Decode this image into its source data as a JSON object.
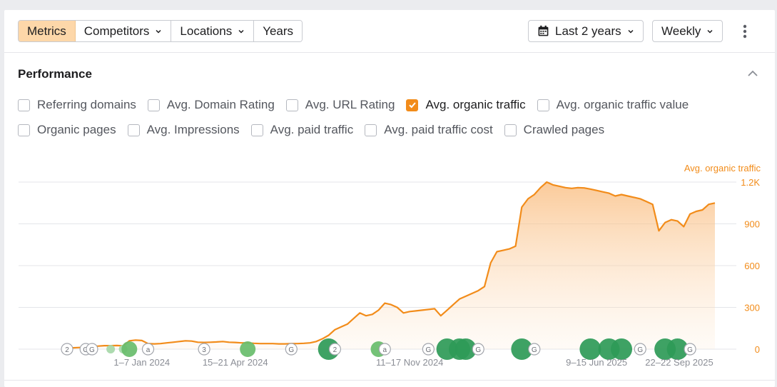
{
  "toolbar": {
    "tabs": [
      {
        "label": "Metrics",
        "dropdown": false,
        "active": true
      },
      {
        "label": "Competitors",
        "dropdown": true,
        "active": false
      },
      {
        "label": "Locations",
        "dropdown": true,
        "active": false
      },
      {
        "label": "Years",
        "dropdown": false,
        "active": false
      }
    ],
    "date_range": "Last 2 years",
    "granularity": "Weekly"
  },
  "performance": {
    "title": "Performance",
    "metrics": [
      {
        "label": "Referring domains",
        "checked": false
      },
      {
        "label": "Avg. Domain Rating",
        "checked": false
      },
      {
        "label": "Avg. URL Rating",
        "checked": false
      },
      {
        "label": "Avg. organic traffic",
        "checked": true
      },
      {
        "label": "Avg. organic traffic value",
        "checked": false
      },
      {
        "label": "Organic pages",
        "checked": false
      },
      {
        "label": "Avg. Impressions",
        "checked": false
      },
      {
        "label": "Avg. paid traffic",
        "checked": false
      },
      {
        "label": "Avg. paid traffic cost",
        "checked": false
      },
      {
        "label": "Crawled pages",
        "checked": false
      }
    ]
  },
  "colors": {
    "accent": "#f28c1a",
    "active_tab": "#fdd7a9",
    "marker_green": "#2e9a57",
    "marker_light_green": "#68bd6b"
  },
  "chart_data": {
    "type": "area",
    "series": [
      {
        "name": "Avg. organic traffic",
        "color": "#f28c1a",
        "x": [
          0,
          1,
          2,
          3,
          4,
          5,
          6,
          7,
          8,
          9,
          10,
          11,
          12,
          13,
          14,
          15,
          16,
          17,
          18,
          19,
          20,
          21,
          22,
          23,
          24,
          25,
          26,
          27,
          28,
          29,
          30,
          31,
          32,
          33,
          34,
          35,
          36,
          37,
          38,
          39,
          40,
          41,
          42,
          43,
          44,
          45,
          46,
          47,
          48,
          49,
          50,
          51,
          52,
          53,
          54,
          55,
          56,
          57,
          58,
          59,
          60,
          61,
          62,
          63,
          64,
          65,
          66,
          67,
          68,
          69,
          70,
          71,
          72,
          73,
          74,
          75,
          76,
          77,
          78,
          79,
          80,
          81,
          82,
          83,
          84,
          85,
          86,
          87,
          88,
          89,
          90,
          91,
          92,
          93,
          94,
          95,
          96,
          97,
          98,
          99,
          100,
          101,
          102,
          103,
          104
        ],
        "values": [
          10,
          10,
          12,
          14,
          20,
          22,
          25,
          25,
          26,
          24,
          60,
          65,
          62,
          40,
          38,
          40,
          45,
          50,
          55,
          60,
          58,
          50,
          48,
          50,
          52,
          55,
          50,
          48,
          45,
          45,
          42,
          40,
          40,
          40,
          38,
          38,
          40,
          40,
          42,
          45,
          55,
          75,
          100,
          140,
          160,
          180,
          220,
          260,
          240,
          250,
          280,
          330,
          320,
          300,
          260,
          270,
          275,
          280,
          285,
          290,
          240,
          280,
          320,
          360,
          380,
          400,
          420,
          450,
          620,
          700,
          710,
          720,
          740,
          1020,
          1080,
          1110,
          1160,
          1200,
          1180,
          1170,
          1160,
          1155,
          1160,
          1158,
          1150,
          1140,
          1130,
          1120,
          1100,
          1110,
          1100,
          1090,
          1080,
          1060,
          1040,
          850,
          910,
          930,
          920,
          880,
          970,
          990,
          1000,
          1040,
          1050
        ],
        "area": true
      }
    ],
    "x_tick_labels": [
      {
        "x": 12,
        "label": "1–7 Jan 2024"
      },
      {
        "x": 27,
        "label": "15–21 Apr 2024"
      },
      {
        "x": 55,
        "label": "11–17 Nov 2024"
      },
      {
        "x": 85,
        "label": "9–15 Jun 2025"
      },
      {
        "x": 104,
        "label": "22–22 Sep 2025"
      }
    ],
    "y_axis": {
      "label": "Avg. organic traffic",
      "ticks": [
        "0",
        "300",
        "600",
        "900",
        "1.2K"
      ],
      "tick_values": [
        0,
        300,
        600,
        900,
        1200
      ],
      "ylim": [
        0,
        1200
      ],
      "position": "right"
    },
    "xlim": [
      0,
      104
    ],
    "grid": true,
    "annotations": [
      {
        "x": 0,
        "label": "2",
        "kind": "badge"
      },
      {
        "x": 3,
        "label": "G",
        "kind": "badge"
      },
      {
        "x": 4,
        "label": "G",
        "kind": "badge"
      },
      {
        "x": 7,
        "kind": "dot-light"
      },
      {
        "x": 9,
        "kind": "dot-light"
      },
      {
        "x": 10,
        "kind": "dot"
      },
      {
        "x": 13,
        "label": "a",
        "kind": "badge"
      },
      {
        "x": 22,
        "label": "3",
        "kind": "badge"
      },
      {
        "x": 29,
        "kind": "dot"
      },
      {
        "x": 36,
        "label": "G",
        "kind": "badge"
      },
      {
        "x": 42,
        "kind": "dot-dark"
      },
      {
        "x": 43,
        "label": "2",
        "kind": "badge"
      },
      {
        "x": 50,
        "kind": "dot"
      },
      {
        "x": 51,
        "label": "a",
        "kind": "badge"
      },
      {
        "x": 58,
        "label": "G",
        "kind": "badge"
      },
      {
        "x": 61,
        "kind": "dot-dark"
      },
      {
        "x": 63,
        "kind": "dot-dark"
      },
      {
        "x": 64,
        "kind": "dot-dark"
      },
      {
        "x": 66,
        "label": "G",
        "kind": "badge"
      },
      {
        "x": 73,
        "kind": "dot-dark"
      },
      {
        "x": 75,
        "label": "G",
        "kind": "badge"
      },
      {
        "x": 84,
        "kind": "dot-dark"
      },
      {
        "x": 87,
        "kind": "dot-dark"
      },
      {
        "x": 89,
        "kind": "dot-dark"
      },
      {
        "x": 92,
        "label": "G",
        "kind": "badge"
      },
      {
        "x": 96,
        "kind": "dot-dark"
      },
      {
        "x": 98,
        "kind": "dot-dark"
      },
      {
        "x": 100,
        "label": "G",
        "kind": "badge"
      }
    ]
  }
}
